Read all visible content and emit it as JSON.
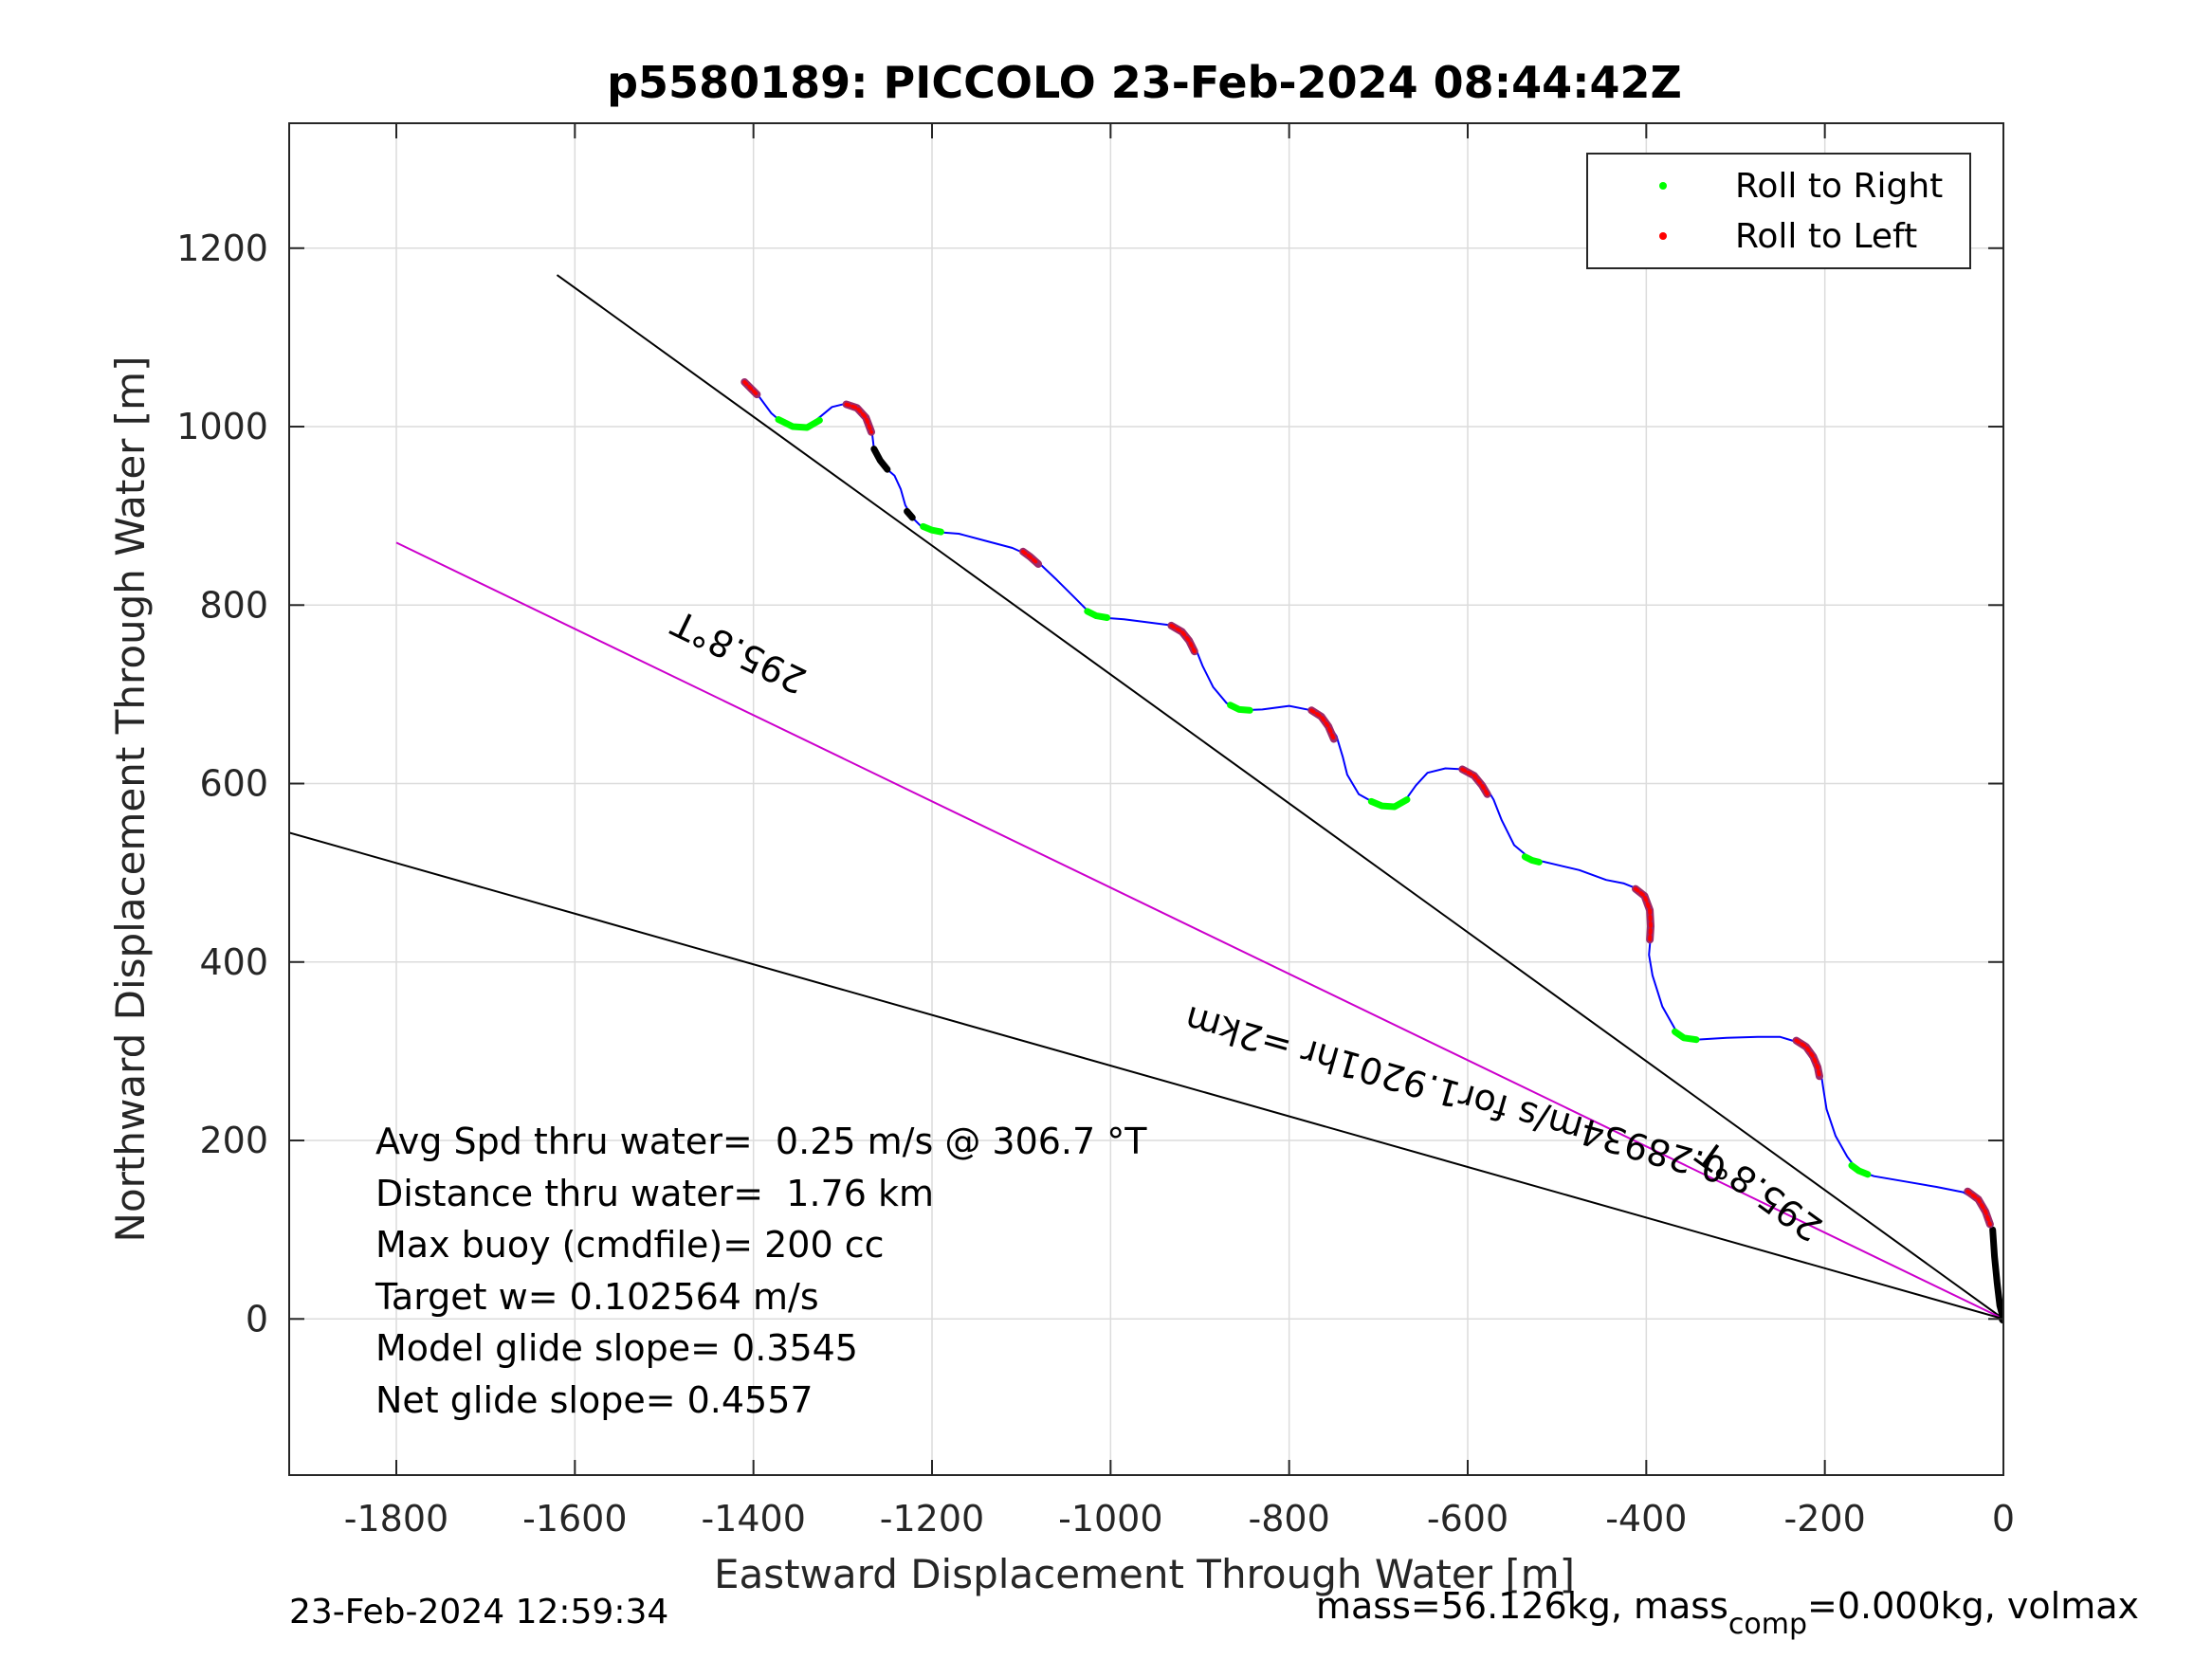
{
  "chart_data": {
    "type": "line",
    "title": "p5580189: PICCOLO 23-Feb-2024 08:44:42Z",
    "xlabel": "Eastward Displacement Through Water [m]",
    "ylabel": "Northward Displacement Through Water [m]",
    "xlim": [
      -1920,
      0
    ],
    "ylim": [
      -175,
      1340
    ],
    "xticks": [
      -1800,
      -1600,
      -1400,
      -1200,
      -1000,
      -800,
      -600,
      -400,
      -200,
      0
    ],
    "yticks": [
      0,
      200,
      400,
      600,
      800,
      1000,
      1200
    ],
    "xtick_labels": [
      "-1800",
      "-1600",
      "-1400",
      "-1200",
      "-1000",
      "-800",
      "-600",
      "-400",
      "-200",
      "0"
    ],
    "ytick_labels": [
      "0",
      "200",
      "400",
      "600",
      "800",
      "1000",
      "1200"
    ],
    "grid": true,
    "legend_position": "top-right",
    "legend": [
      {
        "label": "Roll to Right",
        "color": "#00ff00"
      },
      {
        "label": "Roll to Left",
        "color": "#ff0000"
      }
    ],
    "track_color": "#0000ff",
    "track": [
      [
        -1406,
        1046
      ],
      [
        -1394,
        1034
      ],
      [
        -1380,
        1015
      ],
      [
        -1366,
        1003
      ],
      [
        -1352,
        998
      ],
      [
        -1338,
        1001
      ],
      [
        -1324,
        1012
      ],
      [
        -1312,
        1022
      ],
      [
        -1296,
        1026
      ],
      [
        -1283,
        1022
      ],
      [
        -1272,
        1010
      ],
      [
        -1267,
        992
      ],
      [
        -1265,
        975
      ],
      [
        -1258,
        962
      ],
      [
        -1250,
        952
      ],
      [
        -1242,
        945
      ],
      [
        -1235,
        930
      ],
      [
        -1230,
        912
      ],
      [
        -1222,
        898
      ],
      [
        -1212,
        888
      ],
      [
        -1196,
        882
      ],
      [
        -1170,
        880
      ],
      [
        -1140,
        872
      ],
      [
        -1110,
        864
      ],
      [
        -1092,
        856
      ],
      [
        -1078,
        845
      ],
      [
        -1060,
        828
      ],
      [
        -1040,
        808
      ],
      [
        -1025,
        793
      ],
      [
        -1010,
        786
      ],
      [
        -985,
        784
      ],
      [
        -960,
        781
      ],
      [
        -930,
        777
      ],
      [
        -915,
        768
      ],
      [
        -905,
        752
      ],
      [
        -897,
        732
      ],
      [
        -885,
        708
      ],
      [
        -870,
        690
      ],
      [
        -855,
        682
      ],
      [
        -830,
        683
      ],
      [
        -800,
        687
      ],
      [
        -775,
        682
      ],
      [
        -760,
        673
      ],
      [
        -747,
        653
      ],
      [
        -740,
        630
      ],
      [
        -735,
        610
      ],
      [
        -722,
        588
      ],
      [
        -702,
        577
      ],
      [
        -684,
        574
      ],
      [
        -668,
        584
      ],
      [
        -658,
        598
      ],
      [
        -645,
        612
      ],
      [
        -625,
        617
      ],
      [
        -605,
        616
      ],
      [
        -590,
        607
      ],
      [
        -580,
        597
      ],
      [
        -571,
        582
      ],
      [
        -562,
        559
      ],
      [
        -548,
        531
      ],
      [
        -530,
        516
      ],
      [
        -505,
        510
      ],
      [
        -475,
        503
      ],
      [
        -445,
        492
      ],
      [
        -425,
        488
      ],
      [
        -410,
        482
      ],
      [
        -400,
        470
      ],
      [
        -393,
        450
      ],
      [
        -395,
        430
      ],
      [
        -397,
        408
      ],
      [
        -393,
        385
      ],
      [
        -382,
        350
      ],
      [
        -365,
        320
      ],
      [
        -345,
        313
      ],
      [
        -310,
        315
      ],
      [
        -275,
        316
      ],
      [
        -250,
        316
      ],
      [
        -230,
        310
      ],
      [
        -213,
        296
      ],
      [
        -205,
        280
      ],
      [
        -202,
        260
      ],
      [
        -198,
        235
      ],
      [
        -188,
        205
      ],
      [
        -175,
        182
      ],
      [
        -163,
        166
      ],
      [
        -145,
        160
      ],
      [
        -110,
        154
      ],
      [
        -75,
        148
      ],
      [
        -45,
        142
      ],
      [
        -30,
        133
      ],
      [
        -20,
        118
      ],
      [
        -12,
        100
      ],
      [
        -9,
        60
      ],
      [
        -5,
        20
      ],
      [
        0,
        0
      ]
    ],
    "roll_to_right_arcs": [
      [
        [
          -1372,
          1008
        ],
        [
          -1356,
          1000
        ],
        [
          -1340,
          999
        ],
        [
          -1326,
          1007
        ]
      ],
      [
        [
          -1210,
          888
        ],
        [
          -1200,
          884
        ],
        [
          -1190,
          882
        ]
      ],
      [
        [
          -1026,
          793
        ],
        [
          -1016,
          788
        ],
        [
          -1004,
          786
        ]
      ],
      [
        [
          -866,
          688
        ],
        [
          -856,
          683
        ],
        [
          -844,
          682
        ]
      ],
      [
        [
          -708,
          580
        ],
        [
          -696,
          575
        ],
        [
          -682,
          574
        ],
        [
          -668,
          582
        ]
      ],
      [
        [
          -536,
          518
        ],
        [
          -528,
          514
        ],
        [
          -520,
          512
        ]
      ],
      [
        [
          -368,
          322
        ],
        [
          -358,
          315
        ],
        [
          -344,
          313
        ]
      ],
      [
        [
          -170,
          172
        ],
        [
          -162,
          166
        ],
        [
          -152,
          162
        ]
      ]
    ],
    "roll_to_left_arcs": [
      [
        [
          -1410,
          1050
        ],
        [
          -1403,
          1043
        ],
        [
          -1396,
          1036
        ]
      ],
      [
        [
          -1296,
          1025
        ],
        [
          -1284,
          1021
        ],
        [
          -1274,
          1010
        ],
        [
          -1268,
          994
        ]
      ],
      [
        [
          -1098,
          860
        ],
        [
          -1090,
          854
        ],
        [
          -1081,
          846
        ]
      ],
      [
        [
          -932,
          777
        ],
        [
          -920,
          770
        ],
        [
          -912,
          760
        ],
        [
          -906,
          748
        ]
      ],
      [
        [
          -775,
          682
        ],
        [
          -764,
          675
        ],
        [
          -756,
          664
        ],
        [
          -750,
          650
        ]
      ],
      [
        [
          -606,
          616
        ],
        [
          -593,
          609
        ],
        [
          -584,
          598
        ],
        [
          -578,
          588
        ]
      ],
      [
        [
          -412,
          482
        ],
        [
          -402,
          474
        ],
        [
          -396,
          458
        ],
        [
          -395,
          440
        ],
        [
          -396,
          425
        ]
      ],
      [
        [
          -232,
          312
        ],
        [
          -221,
          305
        ],
        [
          -213,
          294
        ],
        [
          -208,
          282
        ],
        [
          -206,
          272
        ]
      ],
      [
        [
          -40,
          143
        ],
        [
          -28,
          134
        ],
        [
          -20,
          120
        ],
        [
          -15,
          106
        ]
      ]
    ],
    "black_segments": [
      [
        [
          -1265,
          975
        ],
        [
          -1258,
          962
        ],
        [
          -1250,
          952
        ]
      ],
      [
        [
          -1228,
          905
        ],
        [
          -1222,
          898
        ]
      ],
      [
        [
          -12,
          100
        ],
        [
          -10,
          70
        ],
        [
          -7,
          40
        ],
        [
          -4,
          15
        ],
        [
          0,
          0
        ]
      ]
    ],
    "reference_lines": [
      {
        "from": [
          -1620,
          1170
        ],
        "to": [
          0,
          0
        ],
        "color": "#000000",
        "label": "295.8°T",
        "label_at": [
          -265,
          155
        ]
      },
      {
        "from": [
          -1800,
          870
        ],
        "to": [
          0,
          0
        ],
        "color": "#cc00cc",
        "label": "295.8°T",
        "label_at": [
          -1410,
          760
        ]
      },
      {
        "from": [
          -1920,
          545
        ],
        "to": [
          0,
          0
        ],
        "color": "#000000",
        "label": "0.28934m/s for1.9201hr =2km",
        "label_at": [
          -610,
          265
        ]
      }
    ],
    "annotations": [
      "Avg Spd thru water=  0.25 m/s @ 306.7 °T",
      "Distance thru water=  1.76 km",
      "Max buoy (cmdfile)= 200 cc",
      "Target w= 0.102564 m/s",
      "Model glide slope= 0.3545",
      "Net glide slope= 0.4557"
    ]
  },
  "footer": {
    "timestamp": "23-Feb-2024 12:59:34",
    "mass_prefix": "mass=56.126kg, mass",
    "mass_sub": "comp",
    "mass_suffix": "=0.000kg, volmax"
  }
}
